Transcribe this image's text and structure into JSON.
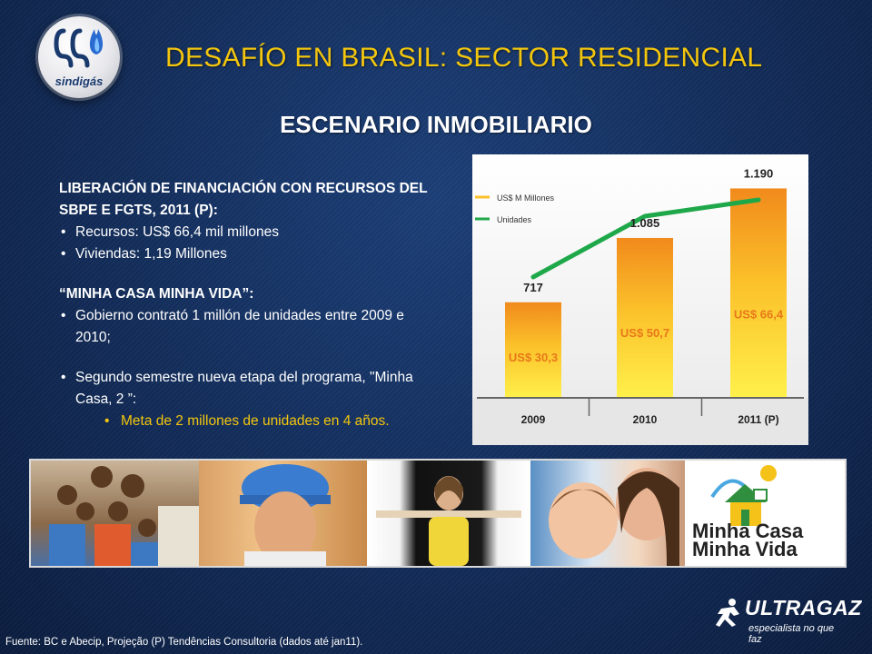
{
  "header": {
    "title": "DESAFÍO EN BRASIL: SECTOR RESIDENCIAL",
    "logo_text": "sindigás",
    "logo_icon": "sindigas-logo-icon"
  },
  "subtitle": "ESCENARIO INMOBILIARIO",
  "content": {
    "heading1": "LIBERACIÓN DE FINANCIACIÓN CON RECURSOS DEL SBPE E FGTS, 2011 (P):",
    "bullets1": [
      "Recursos: US$ 66,4 mil millones",
      "Viviendas: 1,19 Millones"
    ],
    "heading2": "“MINHA CASA MINHA VIDA”:",
    "bullet2": "Gobierno contrató 1 millón de unidades entre 2009 e 2010;",
    "bullet3": "Segundo semestre nueva etapa del programa, \"Minha Casa, 2 ”:",
    "sub_bullet": "Meta de 2 millones de unidades en 4 años."
  },
  "chart_data": {
    "type": "bar",
    "categories": [
      "2009",
      "2010",
      "2011 (P)"
    ],
    "series": [
      {
        "name": "US$ M Millones",
        "type": "bar",
        "values": [
          30.3,
          50.7,
          66.4
        ],
        "labels": [
          "US$ 30,3",
          "US$ 50,7",
          "US$ 66,4"
        ]
      },
      {
        "name": "Unidades",
        "type": "line",
        "values": [
          717,
          1085,
          1190
        ],
        "labels": [
          "717",
          "1.085",
          "1.190"
        ]
      }
    ],
    "colors": {
      "bar_top": "#fff04a",
      "bar_bottom": "#f18a1c",
      "line": "#1fa84a",
      "bar_label": "#e8781a"
    },
    "legend_position": "top-left"
  },
  "photo_strip": {
    "images": [
      "family-photo",
      "worker-photo",
      "woman-photo",
      "mother-child-photo"
    ],
    "program_logo_line1": "Minha Casa",
    "program_logo_line2": "Minha Vida",
    "program_logo_icon": "house-sun-icon"
  },
  "footer": {
    "brand": "ULTRAGAZ",
    "tagline": "especialista no que faz",
    "brand_icon": "ultragaz-runner-icon",
    "source": "Fuente: BC e Abecip, Projeção (P) Tendências Consultoria (dados até jan11)."
  }
}
